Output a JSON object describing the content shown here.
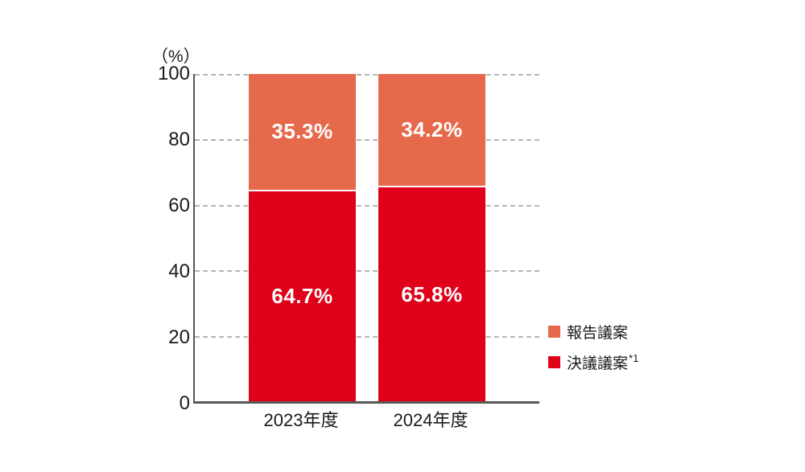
{
  "chart": {
    "unit_label": "（%）",
    "y_ticks": [
      "100",
      "80",
      "60",
      "40",
      "20",
      "0"
    ],
    "x_labels": [
      "2023年度",
      "2024年度"
    ],
    "bar_labels": {
      "bar1_report": "35.3%",
      "bar1_resolution": "64.7%",
      "bar2_report": "34.2%",
      "bar2_resolution": "65.8%"
    },
    "legend": {
      "report_label": "報告議案",
      "resolution_label": "決議議案",
      "resolution_note": "*1"
    },
    "colors": {
      "report_orange": "#E7694B",
      "resolution_red": "#E00019",
      "axis": "#595757",
      "gridline": "#B3B3B3",
      "text": "#1A1A1A",
      "bar_label_text": "#FFFFFF"
    }
  },
  "chart_data": {
    "type": "bar",
    "stacked": true,
    "categories": [
      "2023年度",
      "2024年度"
    ],
    "series": [
      {
        "name": "報告議案",
        "values": [
          35.3,
          34.2
        ],
        "color": "#E7694B"
      },
      {
        "name": "決議議案*1",
        "values": [
          64.7,
          65.8
        ],
        "color": "#E00019"
      }
    ],
    "title": "",
    "xlabel": "",
    "ylabel": "（%）",
    "ylim": [
      0,
      100
    ],
    "y_tick_interval": 20,
    "grid": true,
    "gridline_style": "dashed",
    "legend_position": "right",
    "value_labels": "shown inside segments as percent with one decimal"
  }
}
